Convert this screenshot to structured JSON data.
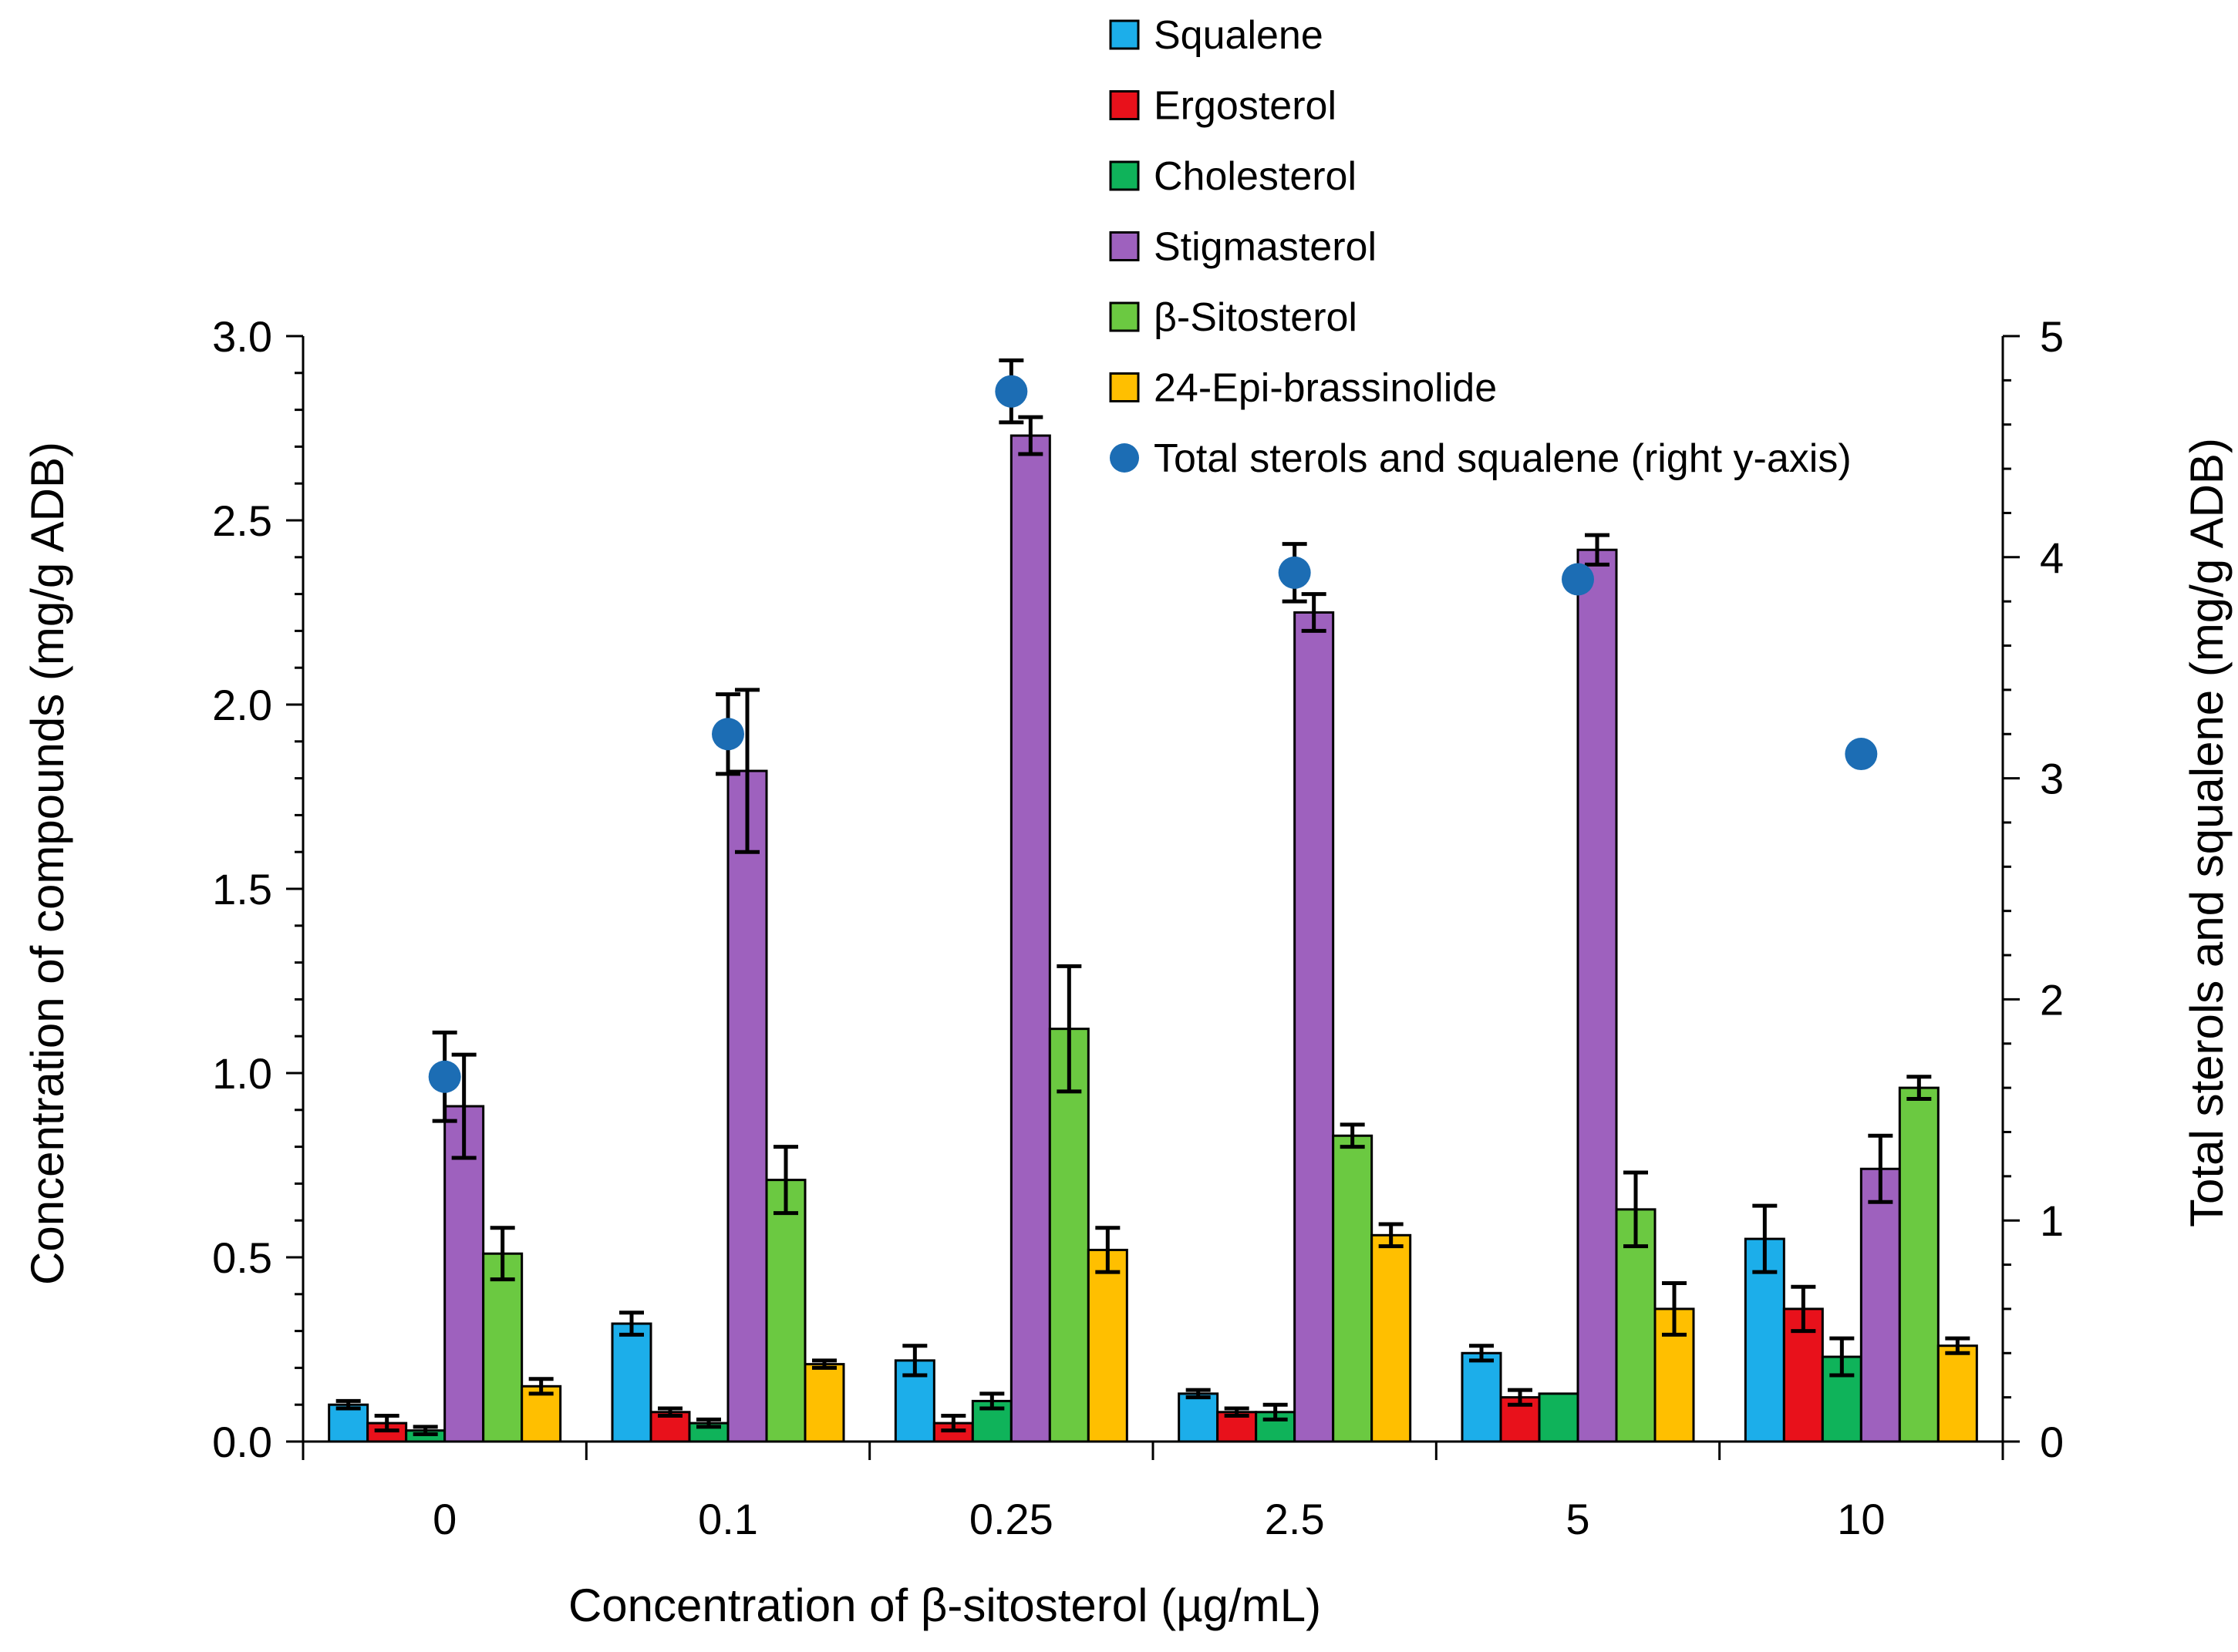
{
  "chart_data": {
    "type": "bar",
    "xlabel": "Concentration of β-sitosterol (µg/mL)",
    "ylabel_left": "Concentration of compounds (mg/g ADB)",
    "ylabel_right": "Total sterols and squalene (mg/g ADB)",
    "ylim_left": [
      0,
      3.0
    ],
    "ylim_right": [
      0,
      5
    ],
    "yticks_left": [
      "0.0",
      "0.5",
      "1.0",
      "1.5",
      "2.0",
      "2.5",
      "3.0"
    ],
    "yticks_right": [
      "0",
      "1",
      "2",
      "3",
      "4",
      "5"
    ],
    "categories": [
      "0",
      "0.1",
      "0.25",
      "2.5",
      "5",
      "10"
    ],
    "grid": false,
    "legend_position": "top-right",
    "series": [
      {
        "name": "Squalene",
        "color": "#1CAEEA",
        "values": [
          0.1,
          0.32,
          0.22,
          0.13,
          0.24,
          0.55
        ],
        "errors": [
          0.01,
          0.03,
          0.04,
          0.01,
          0.02,
          0.09
        ]
      },
      {
        "name": "Ergosterol",
        "color": "#E8111B",
        "values": [
          0.05,
          0.08,
          0.05,
          0.08,
          0.12,
          0.36
        ],
        "errors": [
          0.02,
          0.01,
          0.02,
          0.01,
          0.02,
          0.06
        ]
      },
      {
        "name": "Cholesterol",
        "color": "#0FB35A",
        "values": [
          0.03,
          0.05,
          0.11,
          0.08,
          0.13,
          0.23
        ],
        "errors": [
          0.01,
          0.01,
          0.02,
          0.02,
          0.0,
          0.05
        ]
      },
      {
        "name": "Stigmasterol",
        "color": "#9E61BE",
        "values": [
          0.91,
          1.82,
          2.73,
          2.25,
          2.42,
          0.74
        ],
        "errors": [
          0.14,
          0.22,
          0.05,
          0.05,
          0.04,
          0.09
        ]
      },
      {
        "name": "β-Sitosterol",
        "color": "#6BC941",
        "values": [
          0.51,
          0.71,
          1.12,
          0.83,
          0.63,
          0.96
        ],
        "errors": [
          0.07,
          0.09,
          0.17,
          0.03,
          0.1,
          0.03
        ]
      },
      {
        "name": "24-Epi-brassinolide",
        "color": "#FFBF00",
        "values": [
          0.15,
          0.21,
          0.52,
          0.56,
          0.36,
          0.26
        ],
        "errors": [
          0.02,
          0.01,
          0.06,
          0.03,
          0.07,
          0.02
        ]
      }
    ],
    "total_series": {
      "name": "Total sterols and squalene (right y-axis)",
      "axis": "right",
      "color": "#1C6DB4",
      "values": [
        1.65,
        3.2,
        4.75,
        3.93,
        3.9,
        3.11
      ],
      "errors": [
        0.2,
        0.18,
        0.14,
        0.13,
        0.0,
        0.0
      ]
    }
  }
}
